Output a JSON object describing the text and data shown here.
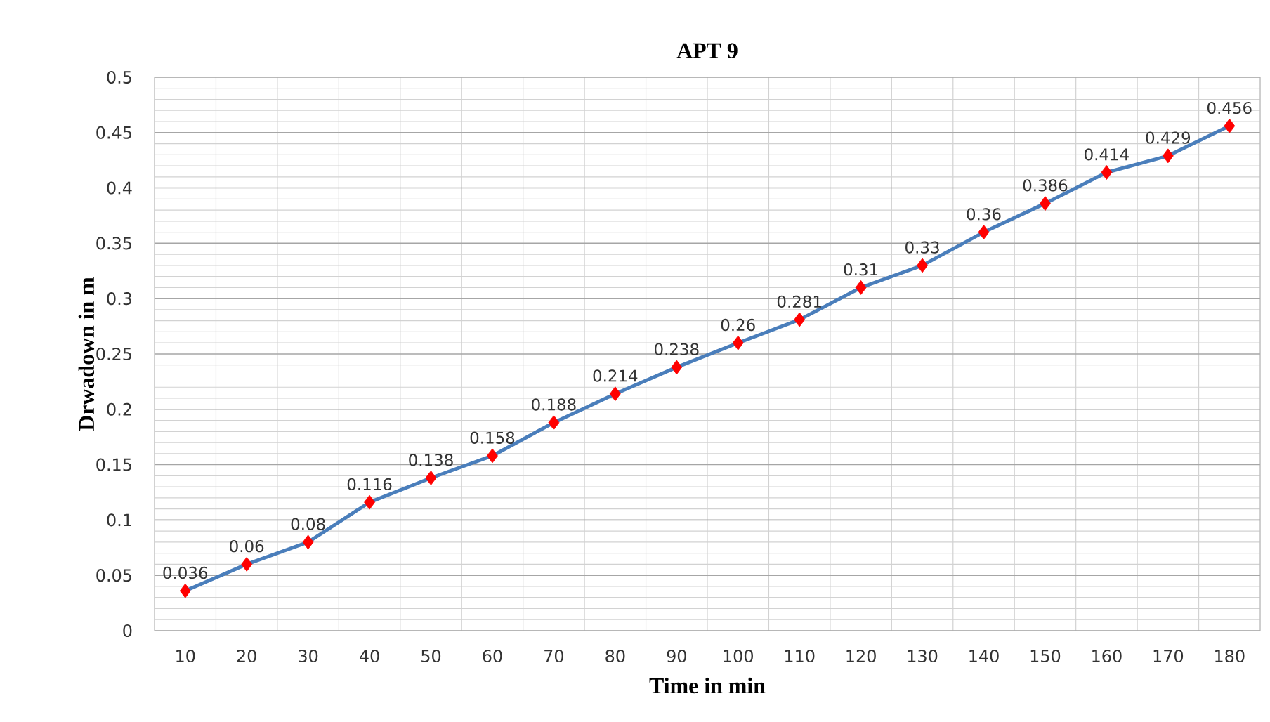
{
  "chart_data": {
    "type": "line",
    "title": "APT 9",
    "xlabel": "Time in min",
    "ylabel": "Drwadown in m",
    "categories": [
      "10",
      "20",
      "30",
      "40",
      "50",
      "60",
      "70",
      "80",
      "90",
      "100",
      "110",
      "120",
      "130",
      "140",
      "150",
      "160",
      "170",
      "180"
    ],
    "series": [
      {
        "color": "#4a7ebb",
        "values": [
          0.036,
          0.06,
          0.08,
          0.116,
          0.138,
          0.158,
          0.188,
          0.214,
          0.238,
          0.26,
          0.281,
          0.31,
          0.33,
          0.36,
          0.386,
          0.414,
          0.429,
          0.456
        ],
        "colors": [
          "#ff0000",
          "#ff0000",
          "#ff0000",
          "#ff0000",
          "#ff0000",
          "#ff0000",
          "#ff0000",
          "#ff0000",
          "#ff0000",
          "#ff0000",
          "#ff0000",
          "#ff0000",
          "#ff0000",
          "#ff0000",
          "#ff0000",
          "#ff0000",
          "#ff0000",
          "#ff0000"
        ]
      }
    ],
    "ylim": [
      0,
      0.5
    ],
    "yticks": [
      0,
      0.05,
      0.1,
      0.15,
      0.2,
      0.25,
      0.3,
      0.35,
      0.4,
      0.45,
      0.5
    ],
    "grid": true,
    "marker": "diamond",
    "line_style": "solid",
    "data_labels": true
  }
}
